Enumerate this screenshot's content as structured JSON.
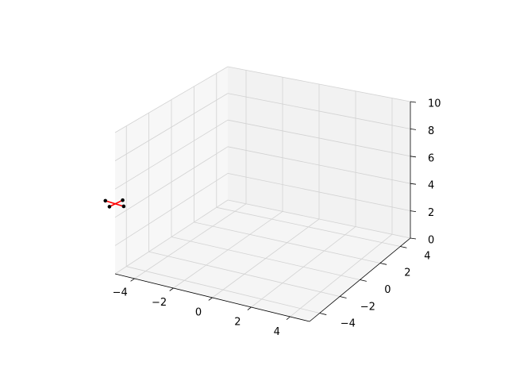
{
  "chart_data": {
    "type": "scatter3d",
    "title": "",
    "xlabel": "",
    "ylabel": "",
    "zlabel": "",
    "xlim": [
      -5,
      5
    ],
    "ylim": [
      -5,
      5
    ],
    "zlim": [
      0,
      10
    ],
    "x_ticks": [
      "−4",
      "−2",
      "0",
      "2",
      "4"
    ],
    "y_ticks": [
      "−4",
      "−2",
      "0",
      "2",
      "4"
    ],
    "z_ticks": [
      "0",
      "2",
      "4",
      "6",
      "8",
      "10"
    ],
    "grid": true,
    "points": [
      {
        "x": -5.5,
        "y": -5.0,
        "z": 5
      },
      {
        "x": -4.5,
        "y": -5.1,
        "z": 5
      },
      {
        "x": -4.9,
        "y": -4.5,
        "z": 5
      },
      {
        "x": -5.0,
        "y": -5.5,
        "z": 5
      }
    ],
    "point_color": "#000000",
    "lines": [
      [
        0,
        1
      ],
      [
        2,
        3
      ]
    ],
    "line_color": "#ff0000"
  }
}
